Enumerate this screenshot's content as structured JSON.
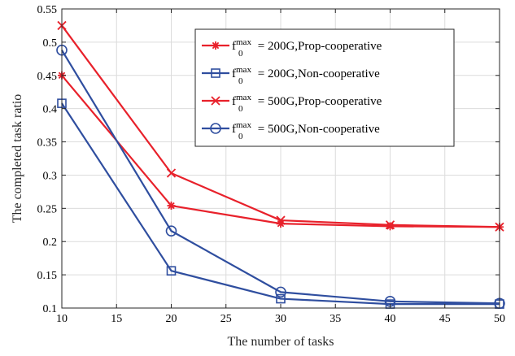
{
  "chart_data": {
    "type": "line",
    "xlabel": "The number of tasks",
    "ylabel": "The completed task ratio",
    "xlim": [
      10,
      50
    ],
    "ylim": [
      0.1,
      0.55
    ],
    "xticks": [
      10,
      15,
      20,
      25,
      30,
      35,
      40,
      45,
      50
    ],
    "xtick_labels": [
      "10",
      "15",
      "20",
      "25",
      "30",
      "35",
      "40",
      "45",
      "50"
    ],
    "yticks": [
      0.1,
      0.15,
      0.2,
      0.25,
      0.3,
      0.35,
      0.4,
      0.45,
      0.5,
      0.55
    ],
    "ytick_labels": [
      "0.1",
      "0.15",
      "0.2",
      "0.25",
      "0.3",
      "0.35",
      "0.4",
      "0.45",
      "0.5",
      "0.55"
    ],
    "grid": true,
    "legend_position": "top-right",
    "x": [
      10,
      20,
      30,
      40,
      50
    ],
    "series": [
      {
        "name": "f0max = 200G,Prop-cooperative",
        "legend_base": "f",
        "legend_sub": "0",
        "legend_sup": "max",
        "legend_rest": " = 200G,Prop-cooperative",
        "color": "#e8212b",
        "marker": "asterisk",
        "values": [
          0.45,
          0.254,
          0.227,
          0.223,
          0.222
        ]
      },
      {
        "name": "f0max = 200G,Non-cooperative",
        "legend_base": "f",
        "legend_sub": "0",
        "legend_sup": "max",
        "legend_rest": " = 200G,Non-cooperative",
        "color": "#2f4e9f",
        "marker": "square",
        "values": [
          0.408,
          0.156,
          0.114,
          0.106,
          0.106
        ]
      },
      {
        "name": "f0max = 500G,Prop-cooperative",
        "legend_base": "f",
        "legend_sub": "0",
        "legend_sup": "max",
        "legend_rest": " = 500G,Prop-cooperative",
        "color": "#e8212b",
        "marker": "x",
        "values": [
          0.525,
          0.303,
          0.232,
          0.225,
          0.222
        ]
      },
      {
        "name": "f0max = 500G,Non-cooperative",
        "legend_base": "f",
        "legend_sub": "0",
        "legend_sup": "max",
        "legend_rest": " = 500G,Non-cooperative",
        "color": "#2f4e9f",
        "marker": "circle",
        "values": [
          0.488,
          0.216,
          0.124,
          0.11,
          0.107
        ]
      }
    ]
  }
}
